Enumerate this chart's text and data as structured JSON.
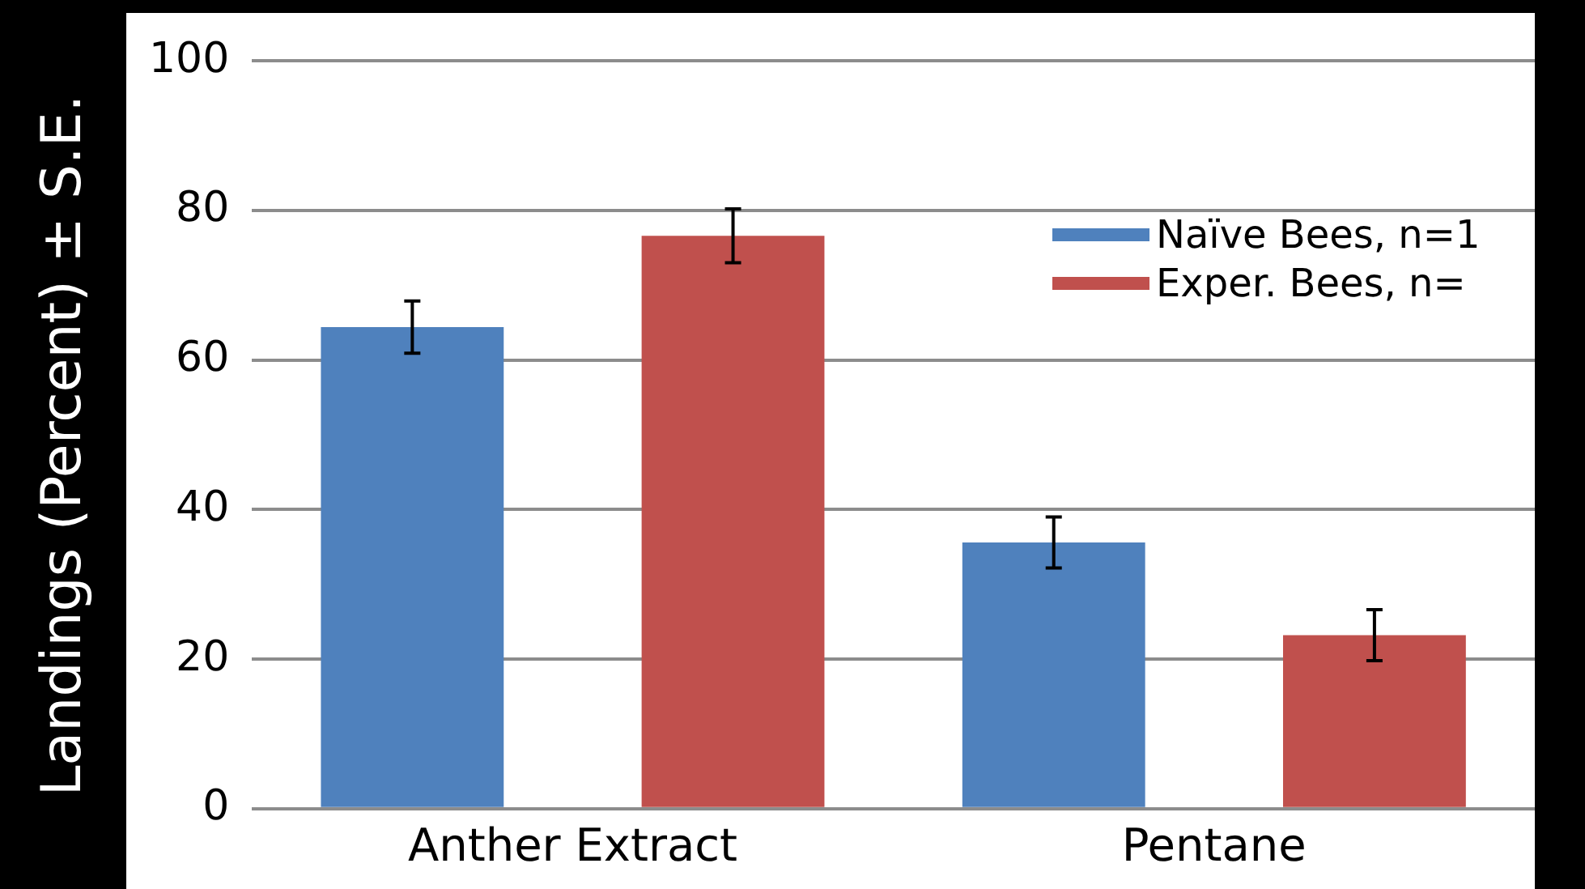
{
  "chart_data": {
    "type": "bar",
    "ylabel": "Landings (Percent) ± S.E.",
    "categories": [
      "Anther Extract",
      "Pentane"
    ],
    "series": [
      {
        "name": "Naïve Bees, n=1",
        "color": "#4f81bd",
        "values": [
          64.4,
          35.6
        ],
        "errors": [
          3.5,
          3.4
        ]
      },
      {
        "name": "Exper. Bees, n=",
        "color": "#c0504d",
        "values": [
          76.6,
          23.2
        ],
        "errors": [
          3.6,
          3.4
        ]
      }
    ],
    "ylim": [
      0,
      100
    ],
    "yticks": [
      0,
      20,
      40,
      60,
      80,
      100
    ],
    "grid": "y",
    "legend": "right"
  }
}
